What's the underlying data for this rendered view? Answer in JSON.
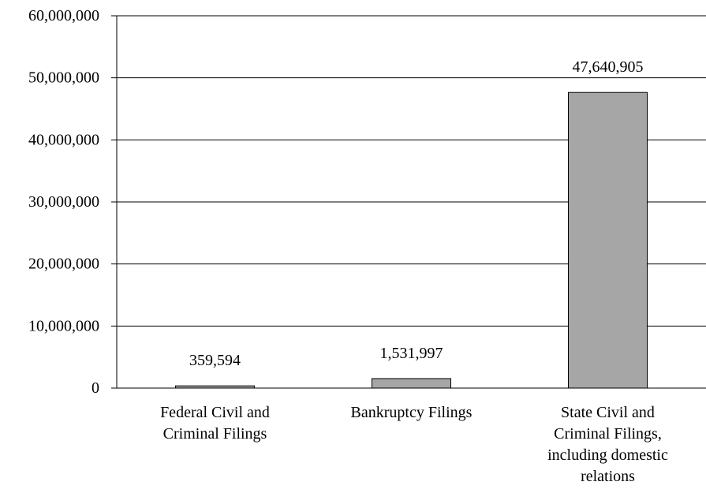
{
  "chart_data": {
    "type": "bar",
    "categories": [
      [
        "Federal Civil and",
        "Criminal Filings"
      ],
      [
        "Bankruptcy Filings"
      ],
      [
        "State Civil and",
        "Criminal Filings,",
        "including domestic",
        "relations"
      ]
    ],
    "values": [
      359594,
      1531997,
      47640905
    ],
    "data_labels": [
      "359,594",
      "1,531,997",
      "47,640,905"
    ],
    "y_ticks": [
      0,
      10000000,
      20000000,
      30000000,
      40000000,
      50000000,
      60000000
    ],
    "y_tick_labels": [
      "0",
      "10,000,000",
      "20,000,000",
      "30,000,000",
      "40,000,000",
      "50,000,000",
      "60,000,000"
    ],
    "ylim": [
      0,
      60000000
    ],
    "title": "",
    "xlabel": "",
    "ylabel": "",
    "grid": true,
    "bar_color": "#a6a6a6",
    "bar_stroke": "#000000"
  }
}
